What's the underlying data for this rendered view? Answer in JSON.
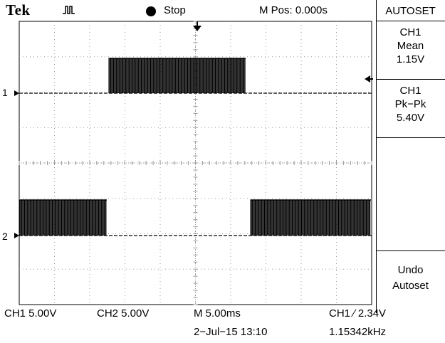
{
  "header": {
    "brand": "Tek",
    "run_state": "Stop",
    "horizontal_position": "M Pos: 0.000s"
  },
  "side_menu": {
    "title": "AUTOSET",
    "measure1": {
      "source": "CH1",
      "type": "Mean",
      "value": "1.15V"
    },
    "measure2": {
      "source": "CH1",
      "type": "Pk−Pk",
      "value": "5.40V"
    },
    "undo": {
      "line1": "Undo",
      "line2": "Autoset"
    }
  },
  "channels": {
    "ch1": {
      "marker": "1",
      "scale": "CH1  5.00V"
    },
    "ch2": {
      "marker": "2",
      "scale": "CH2  5.00V"
    }
  },
  "footer": {
    "timebase": "M 5.00ms",
    "trigger": "CH1 ∕ 2.34V",
    "datetime": "2−Jul−15 13:10",
    "frequency": "1.15342kHz"
  }
}
